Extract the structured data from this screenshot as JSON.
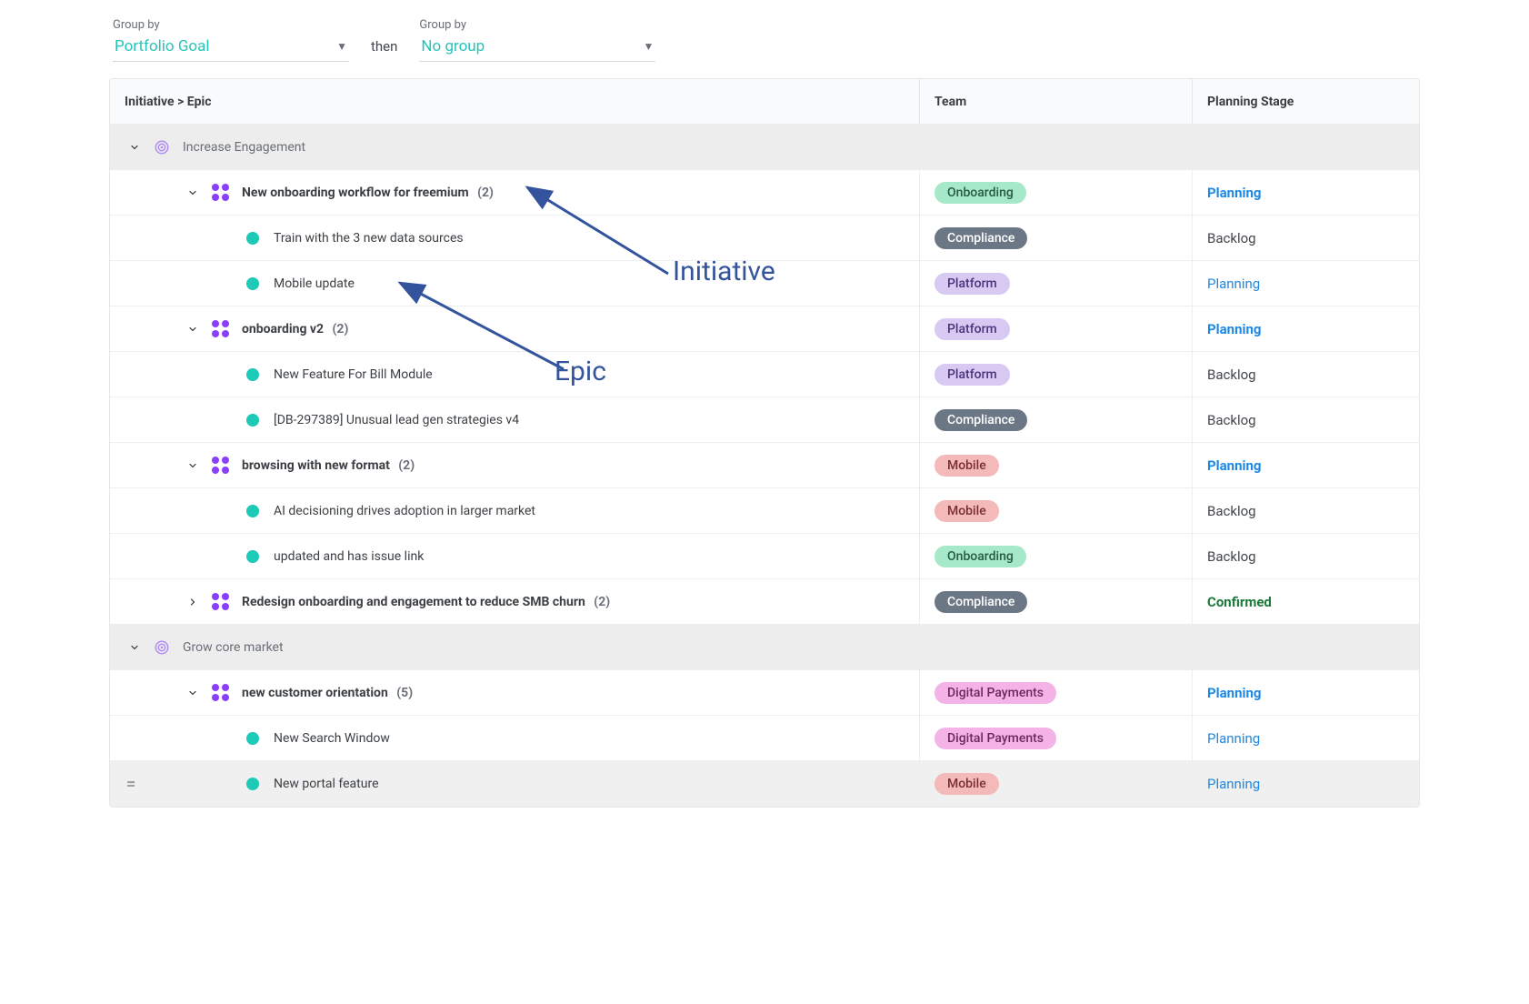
{
  "groupby": {
    "label1": "Group by",
    "value1": "Portfolio Goal",
    "then": "then",
    "label2": "Group by",
    "value2": "No group"
  },
  "columns": {
    "title": "Initiative > Epic",
    "team": "Team",
    "stage": "Planning Stage"
  },
  "annotations": {
    "initiative_label": "Initiative",
    "epic_label": "Epic",
    "arrow_color": "#33549d"
  },
  "team_styles": {
    "Onboarding": {
      "bg": "#a6e9c8",
      "fg": "#2a5a41"
    },
    "Compliance": {
      "bg": "#6b7785",
      "fg": "#ffffff"
    },
    "Platform": {
      "bg": "#d7c9f2",
      "fg": "#4a357a"
    },
    "Mobile": {
      "bg": "#f4b9b9",
      "fg": "#7a2f2f"
    },
    "Digital Payments": {
      "bg": "#f3b3e6",
      "fg": "#6a2a5d"
    }
  },
  "stage_styles": {
    "Planning": {
      "color": "#1e88e5",
      "bold": false
    },
    "Planning_bold": {
      "color": "#1e88e5",
      "bold": true
    },
    "Backlog": {
      "color": "#43474d",
      "bold": false
    },
    "Confirmed": {
      "color": "#1b7a3a",
      "bold": true
    }
  },
  "groups": [
    {
      "name": "Increase Engagement",
      "initiatives": [
        {
          "name": "New onboarding workflow for freemium",
          "count": 2,
          "expanded": true,
          "team": "Onboarding",
          "stage_key": "Planning_bold",
          "stage_text": "Planning",
          "epics": [
            {
              "name": "Train with the 3 new data sources",
              "team": "Compliance",
              "stage_key": "Backlog",
              "stage_text": "Backlog"
            },
            {
              "name": "Mobile update",
              "team": "Platform",
              "stage_key": "Planning",
              "stage_text": "Planning"
            }
          ]
        },
        {
          "name": "onboarding v2",
          "count": 2,
          "expanded": true,
          "team": "Platform",
          "stage_key": "Planning_bold",
          "stage_text": "Planning",
          "epics": [
            {
              "name": "New Feature For Bill Module",
              "team": "Platform",
              "stage_key": "Backlog",
              "stage_text": "Backlog"
            },
            {
              "name": "[DB-297389] Unusual lead gen strategies v4",
              "team": "Compliance",
              "stage_key": "Backlog",
              "stage_text": "Backlog"
            }
          ]
        },
        {
          "name": "browsing with new format",
          "count": 2,
          "expanded": true,
          "team": "Mobile",
          "stage_key": "Planning_bold",
          "stage_text": "Planning",
          "epics": [
            {
              "name": "AI decisioning drives adoption in larger market",
              "team": "Mobile",
              "stage_key": "Backlog",
              "stage_text": "Backlog"
            },
            {
              "name": "updated and has issue link",
              "team": "Onboarding",
              "stage_key": "Backlog",
              "stage_text": "Backlog"
            }
          ]
        },
        {
          "name": "Redesign onboarding and engagement to reduce SMB churn",
          "count": 2,
          "expanded": false,
          "team": "Compliance",
          "stage_key": "Confirmed",
          "stage_text": "Confirmed",
          "epics": []
        }
      ]
    },
    {
      "name": "Grow core market",
      "initiatives": [
        {
          "name": "new customer orientation",
          "count": 5,
          "expanded": true,
          "team": "Digital Payments",
          "stage_key": "Planning_bold",
          "stage_text": "Planning",
          "epics": [
            {
              "name": "New Search Window",
              "team": "Digital Payments",
              "stage_key": "Planning",
              "stage_text": "Planning"
            },
            {
              "name": "New portal feature",
              "team": "Mobile",
              "stage_key": "Planning",
              "stage_text": "Planning",
              "dim": true,
              "drag_handle": true
            }
          ]
        }
      ]
    }
  ]
}
